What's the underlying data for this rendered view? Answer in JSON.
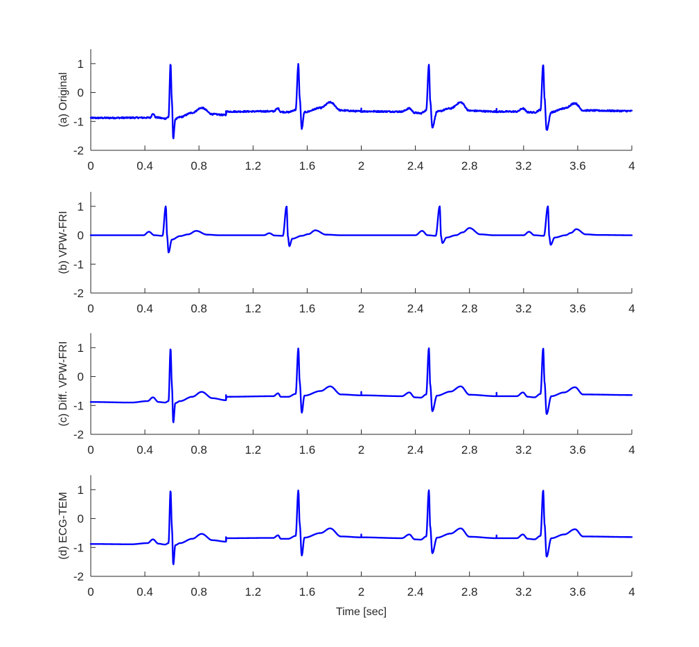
{
  "chart_data": {
    "type": "line",
    "xlabel": "Time [sec]",
    "xlim": [
      0,
      4
    ],
    "ylim": [
      -2,
      1.5
    ],
    "x_ticks": [
      0,
      0.4,
      0.8,
      1.2,
      1.6,
      2,
      2.4,
      2.8,
      3.2,
      3.6,
      4
    ],
    "x_tick_labels": [
      "0",
      "0.4",
      "0.8",
      "1.2",
      "1.6",
      "2",
      "2.4",
      "2.8",
      "3.2",
      "3.6",
      "4"
    ],
    "y_ticks": [
      -2,
      -1,
      0,
      1
    ],
    "y_tick_labels": [
      "-2",
      "-1",
      "0",
      "1"
    ],
    "grid": false,
    "line_color": "#0000ff",
    "panels": [
      {
        "ylabel": "(a) Original",
        "noise": true,
        "series": {
          "x": [
            0,
            0.44,
            0.46,
            0.48,
            0.55,
            0.575,
            0.59,
            0.6,
            0.61,
            0.625,
            0.66,
            0.75,
            0.82,
            0.9,
            1.0,
            1.001,
            1.35,
            1.385,
            1.405,
            1.46,
            1.515,
            1.535,
            1.545,
            1.56,
            1.58,
            1.7,
            1.77,
            1.85,
            2.0,
            2.3,
            2.355,
            2.395,
            2.44,
            2.48,
            2.5,
            2.51,
            2.525,
            2.56,
            2.66,
            2.735,
            2.8,
            3.0,
            3.15,
            3.195,
            3.23,
            3.28,
            3.325,
            3.345,
            3.355,
            3.37,
            3.405,
            3.5,
            3.58,
            3.64,
            4.0
          ],
          "y": [
            -0.88,
            -0.87,
            -0.72,
            -0.86,
            -0.9,
            -0.85,
            0.98,
            -0.3,
            -1.6,
            -0.92,
            -0.85,
            -0.7,
            -0.53,
            -0.75,
            -0.78,
            -0.66,
            -0.65,
            -0.55,
            -0.67,
            -0.68,
            -0.6,
            0.98,
            -0.2,
            -1.25,
            -0.68,
            -0.53,
            -0.34,
            -0.62,
            -0.65,
            -0.66,
            -0.55,
            -0.7,
            -0.72,
            -0.62,
            0.98,
            -0.3,
            -1.2,
            -0.66,
            -0.55,
            -0.34,
            -0.63,
            -0.66,
            -0.66,
            -0.55,
            -0.68,
            -0.69,
            -0.6,
            0.98,
            -0.2,
            -1.3,
            -0.68,
            -0.55,
            -0.37,
            -0.62,
            -0.64
          ]
        },
        "spikes": [
          {
            "x": 1.0,
            "h": 0.14
          },
          {
            "x": 2.0,
            "h": 0.1
          },
          {
            "x": 3.0,
            "h": 0.1
          }
        ]
      },
      {
        "ylabel": "(b) VPW-FRI",
        "noise": false,
        "series": {
          "x": [
            0,
            0.39,
            0.43,
            0.47,
            0.53,
            0.555,
            0.565,
            0.575,
            0.6,
            0.66,
            0.72,
            0.78,
            0.86,
            0.95,
            1.28,
            1.32,
            1.36,
            1.42,
            1.448,
            1.458,
            1.468,
            1.49,
            1.56,
            1.61,
            1.66,
            1.74,
            1.85,
            2.4,
            2.45,
            2.49,
            2.55,
            2.58,
            2.59,
            2.6,
            2.63,
            2.7,
            2.75,
            2.8,
            2.88,
            2.98,
            3.2,
            3.24,
            3.28,
            3.35,
            3.38,
            3.39,
            3.4,
            3.43,
            3.51,
            3.55,
            3.59,
            3.66,
            3.75,
            4.0
          ],
          "y": [
            0,
            0,
            0.12,
            0,
            -0.02,
            1.0,
            -0.05,
            -0.6,
            -0.15,
            -0.03,
            0.03,
            0.15,
            0.02,
            0,
            0,
            0.07,
            -0.01,
            -0.02,
            1.0,
            -0.05,
            -0.38,
            -0.12,
            -0.02,
            0.04,
            0.17,
            0.02,
            0,
            0,
            0.15,
            0,
            -0.02,
            1.0,
            -0.05,
            -0.27,
            -0.08,
            0,
            0.1,
            0.25,
            0.03,
            0,
            0,
            0.12,
            0,
            -0.02,
            1.0,
            -0.05,
            -0.33,
            -0.08,
            0,
            0.08,
            0.21,
            0.03,
            0.01,
            0
          ]
        },
        "spikes": []
      },
      {
        "ylabel": "(c) Diff. VPW-FRI",
        "noise": false,
        "series": {
          "x": [
            0,
            0.3,
            0.42,
            0.46,
            0.5,
            0.55,
            0.575,
            0.59,
            0.6,
            0.61,
            0.625,
            0.66,
            0.75,
            0.82,
            0.9,
            1.0,
            1.001,
            1.35,
            1.385,
            1.405,
            1.46,
            1.515,
            1.535,
            1.545,
            1.56,
            1.58,
            1.7,
            1.77,
            1.85,
            2.0,
            2.3,
            2.355,
            2.395,
            2.44,
            2.48,
            2.5,
            2.51,
            2.525,
            2.56,
            2.66,
            2.735,
            2.8,
            3.0,
            3.15,
            3.195,
            3.23,
            3.28,
            3.325,
            3.345,
            3.355,
            3.37,
            3.405,
            3.5,
            3.58,
            3.64,
            4.0
          ],
          "y": [
            -0.88,
            -0.9,
            -0.85,
            -0.72,
            -0.88,
            -0.9,
            -0.85,
            0.98,
            -0.3,
            -1.6,
            -0.92,
            -0.85,
            -0.7,
            -0.53,
            -0.75,
            -0.82,
            -0.7,
            -0.68,
            -0.58,
            -0.7,
            -0.7,
            -0.6,
            0.98,
            -0.2,
            -1.25,
            -0.66,
            -0.5,
            -0.34,
            -0.62,
            -0.65,
            -0.68,
            -0.55,
            -0.72,
            -0.73,
            -0.62,
            0.98,
            -0.3,
            -1.2,
            -0.66,
            -0.52,
            -0.34,
            -0.63,
            -0.68,
            -0.68,
            -0.55,
            -0.7,
            -0.72,
            -0.6,
            0.98,
            -0.2,
            -1.3,
            -0.68,
            -0.55,
            -0.37,
            -0.62,
            -0.64
          ]
        },
        "spikes": [
          {
            "x": 1.0,
            "h": 0.18
          },
          {
            "x": 2.0,
            "h": 0.12
          },
          {
            "x": 3.0,
            "h": 0.12
          }
        ]
      },
      {
        "ylabel": "(d) ECG-TEM",
        "noise": false,
        "series": {
          "x": [
            0,
            0.3,
            0.42,
            0.46,
            0.5,
            0.55,
            0.575,
            0.59,
            0.6,
            0.61,
            0.625,
            0.66,
            0.75,
            0.82,
            0.9,
            1.0,
            1.001,
            1.35,
            1.385,
            1.405,
            1.46,
            1.515,
            1.535,
            1.545,
            1.56,
            1.58,
            1.7,
            1.77,
            1.85,
            2.0,
            2.3,
            2.355,
            2.395,
            2.44,
            2.48,
            2.5,
            2.51,
            2.525,
            2.56,
            2.66,
            2.735,
            2.8,
            3.0,
            3.15,
            3.195,
            3.23,
            3.28,
            3.325,
            3.345,
            3.355,
            3.37,
            3.405,
            3.5,
            3.58,
            3.64,
            4.0
          ],
          "y": [
            -0.88,
            -0.89,
            -0.85,
            -0.72,
            -0.87,
            -0.9,
            -0.85,
            0.98,
            -0.3,
            -1.6,
            -0.92,
            -0.85,
            -0.7,
            -0.53,
            -0.75,
            -0.8,
            -0.68,
            -0.67,
            -0.58,
            -0.7,
            -0.7,
            -0.6,
            0.98,
            -0.2,
            -1.28,
            -0.66,
            -0.5,
            -0.34,
            -0.62,
            -0.65,
            -0.68,
            -0.55,
            -0.72,
            -0.73,
            -0.62,
            0.98,
            -0.3,
            -1.2,
            -0.66,
            -0.52,
            -0.34,
            -0.63,
            -0.68,
            -0.68,
            -0.55,
            -0.7,
            -0.72,
            -0.6,
            0.98,
            -0.2,
            -1.32,
            -0.68,
            -0.55,
            -0.37,
            -0.62,
            -0.64
          ]
        },
        "spikes": [
          {
            "x": 1.0,
            "h": 0.16
          },
          {
            "x": 2.0,
            "h": 0.1
          },
          {
            "x": 3.0,
            "h": 0.1
          }
        ]
      }
    ]
  }
}
